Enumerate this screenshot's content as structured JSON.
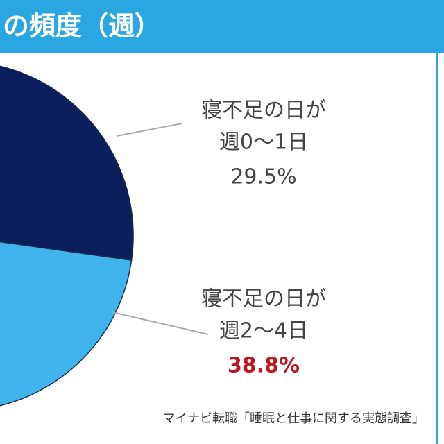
{
  "chart_data": {
    "type": "pie",
    "title": "の頻度（週）",
    "categories": [
      [
        "寝不足の日が",
        "週0～1日"
      ],
      [
        "寝不足の日が",
        "週2～4日"
      ]
    ],
    "values": [
      29.5,
      38.8
    ],
    "value_labels": [
      "29.5%",
      "38.8%"
    ],
    "colors": [
      "#0b1f5c",
      "#3fb3ec"
    ],
    "label_colors": [
      "#444444",
      "#c0141e"
    ],
    "source": "マイナビ転職「睡眠と仕事に関する実態調査」"
  }
}
